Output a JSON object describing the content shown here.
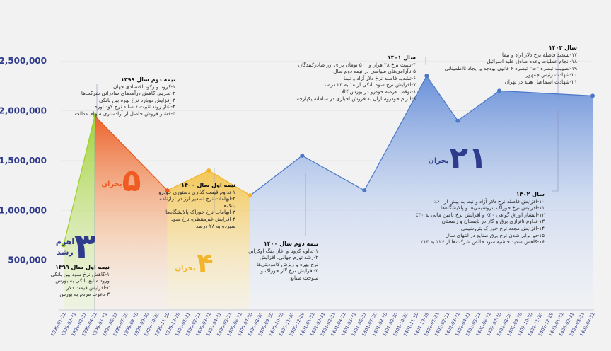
{
  "chart_data": {
    "type": "area",
    "title": "",
    "xlabel": "",
    "ylabel": "",
    "ylim": [
      0,
      2700000
    ],
    "y_ticks": [
      "500,000",
      "1,000,000",
      "1,500,000",
      "2,000,000",
      "2,500,000"
    ],
    "y_tick_values": [
      500000,
      1000000,
      1500000,
      2000000,
      2500000
    ],
    "x_ticks": [
      "1399-01-31",
      "1399-02-31",
      "1399-03-31",
      "1399-04-31",
      "1399-05-31",
      "1399-06-31",
      "1399-07-30",
      "1399-08-30",
      "1399-09-30",
      "1399-10-30",
      "1399-11-30",
      "1399-12-29",
      "1400-01-31",
      "1400-02-31",
      "1400-03-31",
      "1400-04-31",
      "1400-05-31",
      "1400-06-31",
      "1400-07-30",
      "1400-08-30",
      "1400-09-30",
      "1400-10-30",
      "1400-11-30",
      "1400-12-29",
      "1401-01-31",
      "1401-02-31",
      "1401-03-31",
      "1401-04-31",
      "1401-05-31",
      "1401-06-31",
      "1401-07-30",
      "1401-08-30",
      "1401-09-30",
      "1401-10-30",
      "1401-11-30",
      "1401-12-29",
      "1402-01-31",
      "1402-02-31",
      "1402-03-31",
      "1402-04-31",
      "1402-05-31",
      "1402-06-31",
      "1402-07-30",
      "1402-08-30",
      "1402-09-30",
      "1402-10-30",
      "1402-11-30",
      "1402-12-29",
      "1403-01-31",
      "1403-02-31",
      "1403-03-31",
      "1403-04-31"
    ],
    "series": [
      {
        "points": [
          {
            "x": "1399-01-31",
            "y": 650000
          },
          {
            "x": "1399-04-31",
            "y": 1950000
          },
          {
            "x": "1399-11-30",
            "y": 1200000
          },
          {
            "x": "1400-03-31",
            "y": 1400000
          },
          {
            "x": "1400-07-30",
            "y": 1150000
          },
          {
            "x": "1400-12-29",
            "y": 1550000
          },
          {
            "x": "1401-06-31",
            "y": 1200000
          },
          {
            "x": "1401-12-29",
            "y": 2350000
          },
          {
            "x": "1402-03-31",
            "y": 1900000
          },
          {
            "x": "1402-07-30",
            "y": 2200000
          },
          {
            "x": "1403-04-31",
            "y": 2150000
          }
        ]
      }
    ],
    "regions": [
      {
        "from": "1399-01-31",
        "to": "1399-04-31",
        "color": "#a6d638",
        "number": "۳",
        "label": "اهرم رشد"
      },
      {
        "from": "1399-04-31",
        "to": "1399-11-30",
        "color": "#f07a33",
        "number": "۵",
        "label": "بحران"
      },
      {
        "from": "1399-11-30",
        "to": "1400-07-30",
        "color": "#f6c84d",
        "number": "۴",
        "label": "بحران"
      },
      {
        "from": "1400-07-30",
        "to": "1403-04-31",
        "color": "#4b77c8",
        "number": "۲۱",
        "label": "بحران"
      }
    ],
    "annotations": [
      {
        "id": "a1",
        "title": "نیمه اول سال ۱۳۹۹",
        "lines": [
          "۱-کاهش نرخ سود بین بانکی",
          "ورود منابع بانکی به بورس",
          "۲-افزایش قیمت دلار",
          "۳-دعوت مردم به بورس"
        ]
      },
      {
        "id": "a2",
        "title": "نیمه دوم سال ۱۳۹۹",
        "lines": [
          "۱-کرونا و رکود اقتصادی جهان",
          "۲-تحریم، کاهش درآمدهای صادراتی شرکت‌ها",
          "۳-افزایش دوباره نرخ بهره بین بانکی",
          "۴-آغاز روند تثبیت ۶ ساله نرخ کود اوره",
          "۵-فشار فروش حاصل از آزادسازی سهام عدالت"
        ]
      },
      {
        "id": "a3",
        "title": "نیمه اول سال ۱۴۰۰",
        "lines": [
          "۱-تداوم قیمت گذاری دستوری خودرو",
          "۲-ابهامات نرخ تسعیر ارز در ترازنامه",
          "بانک‌ها",
          "۳-ابهامات نرخ خوراک پالایشگاه‌ها",
          "۴-افزایش غیرمنتظره نرخ سود",
          "سپرده به ۲۸ درصد"
        ]
      },
      {
        "id": "a4",
        "title": "نیمه دوم سال ۱۴۰۰",
        "lines": [
          "۱-تداوم کرونا و آغاز جنگ اوکراین",
          "۲-رشد تورم جهانی، افزایش",
          "نرخ بهره و ریزش کامودیتی‌ها",
          "۳-افزایش نرخ گاز خوراک و",
          "سوخت صنایع"
        ]
      },
      {
        "id": "a5",
        "title": "سال ۱۴۰۱",
        "lines": [
          "۴-تثبیت نرخ ۲۸ هزار و ۵۰۰ تومان برای ارز صادرکنندگان",
          "۵-ناآرامی‌های سیاسی در نیمه دوم سال",
          "۶-تشدید فاصله نرخ دلار آزاد و نیما",
          "۷-افزایش نرخ سود بانکی از ۱۸ به ۲۳ درصد",
          "۸-توقف عرضه خودرو در بورس کالا",
          "۹-الزام خودروسازان به فروش اجباری در سامانه یکپارچه"
        ]
      },
      {
        "id": "a6",
        "title": "سال ۱۴۰۲",
        "lines": [
          "۱۰-افزایش فاصله نرخ دلار آزاد و نیما به بیش از ۶۰٪",
          "۱۱-افزایش نرخ خوراک پتروشیمی‌ها و پالایشگاه‌ها",
          "۱۲-انتشار اوراق گواهی ۳۰٪ و افزایش نرخ تامین مالی به ۴۰٪",
          "۱۳-تداوم ناترازی برق و گاز در تابستان و زمستان",
          "۱۴-افزایش مجدد نرخ خوراک پتروشیمی",
          "۱۵-دو برابر شدن نرخ برق صنایع در انتهای سال",
          "۱۶-کاهش شدید حاشیه سود خالص شرکت‌ها از ۲۶٪ به ۱۴٪"
        ]
      },
      {
        "id": "a7",
        "title": "سال ۱۴۰۳",
        "lines": [
          "۱۷-تشدید فاصله نرخ دلار آزاد و نیما",
          "۱۸-انجام عملیات وعده صادق علیه اسرائیل",
          "۱۹-تصویب تبصره \"ت\" تبصره ۶ قانون بودجه و ایجاد نااطمینانی",
          "۲۰-شهادت رئیس جمهور",
          "۲۱-شهادت اسماعیل هنیه در تهران"
        ]
      }
    ]
  }
}
